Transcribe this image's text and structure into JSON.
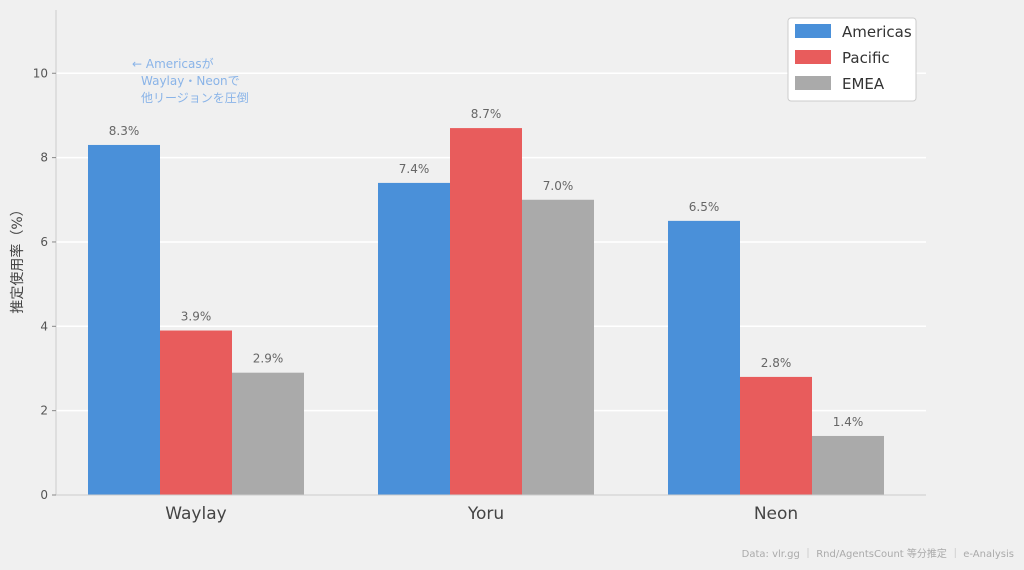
{
  "chart_data": {
    "type": "bar",
    "categories": [
      "Waylay",
      "Yoru",
      "Neon"
    ],
    "series": [
      {
        "name": "Americas",
        "values": [
          8.3,
          7.4,
          6.5
        ],
        "color": "#4a90d9"
      },
      {
        "name": "Pacific",
        "values": [
          3.9,
          8.7,
          2.8
        ],
        "color": "#e85c5c"
      },
      {
        "name": "EMEA",
        "values": [
          2.9,
          7.0,
          1.4
        ],
        "color": "#aaaaaa"
      }
    ],
    "value_labels": [
      [
        "8.3%",
        "7.4%",
        "6.5%"
      ],
      [
        "3.9%",
        "8.7%",
        "2.8%"
      ],
      [
        "2.9%",
        "7.0%",
        "1.4%"
      ]
    ],
    "ylabel": "推定使用率（%）",
    "ylim": [
      0,
      11.5
    ],
    "yticks": [
      0,
      2,
      4,
      6,
      8,
      10
    ],
    "grid": true,
    "legend_position": "top-right",
    "annotation": [
      "← Americasが",
      "Waylay・Neonで",
      "他リージョンを圧倒"
    ],
    "annotation_color": "#8ab4e8",
    "footer": "Data: vlr.gg ｜ Rnd/AgentsCount 等分推定 ｜ e-Analysis"
  }
}
